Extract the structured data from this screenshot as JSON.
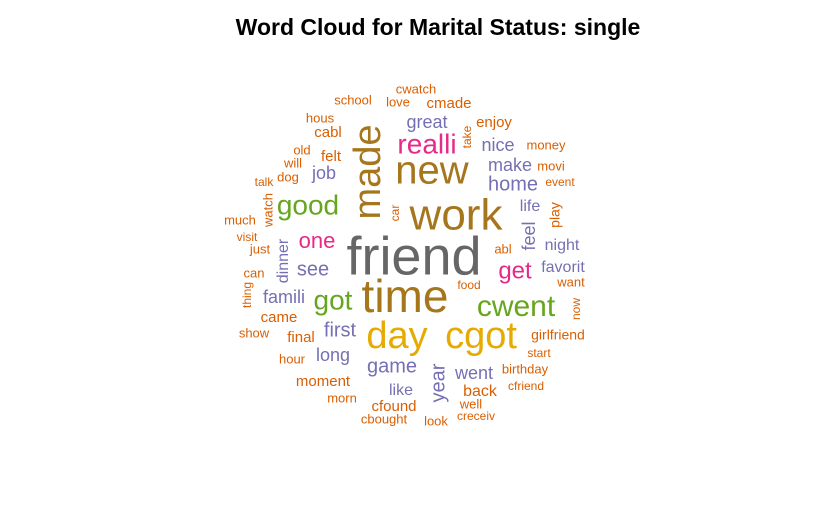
{
  "chart_data": {
    "type": "wordcloud",
    "title": "Word Cloud for Marital Status: single",
    "palette": {
      "orange": "#D95F02",
      "purple": "#7570B3",
      "magenta": "#E7298A",
      "green": "#66A61E",
      "gold": "#E6AB02",
      "brown": "#A6761D",
      "gray": "#666666"
    },
    "words": [
      {
        "text": "friend",
        "color": "gray",
        "rotate": 0
      },
      {
        "text": "made",
        "color": "brown",
        "rotate": -90
      },
      {
        "text": "work",
        "color": "brown",
        "rotate": 0
      },
      {
        "text": "new",
        "color": "brown",
        "rotate": 0
      },
      {
        "text": "time",
        "color": "brown",
        "rotate": 0
      },
      {
        "text": "day",
        "color": "gold",
        "rotate": 0
      },
      {
        "text": "cgot",
        "color": "gold",
        "rotate": 0
      },
      {
        "text": "cwent",
        "color": "green",
        "rotate": 0
      },
      {
        "text": "realli",
        "color": "magenta",
        "rotate": 0
      },
      {
        "text": "good",
        "color": "green",
        "rotate": 0
      },
      {
        "text": "got",
        "color": "green",
        "rotate": 0
      },
      {
        "text": "get",
        "color": "magenta",
        "rotate": 0
      },
      {
        "text": "one",
        "color": "magenta",
        "rotate": 0
      },
      {
        "text": "see",
        "color": "purple",
        "rotate": 0
      },
      {
        "text": "game",
        "color": "purple",
        "rotate": 0
      },
      {
        "text": "home",
        "color": "purple",
        "rotate": 0
      },
      {
        "text": "famili",
        "color": "purple",
        "rotate": 0
      },
      {
        "text": "first",
        "color": "purple",
        "rotate": 0
      },
      {
        "text": "job",
        "color": "purple",
        "rotate": 0
      },
      {
        "text": "nice",
        "color": "purple",
        "rotate": 0
      },
      {
        "text": "great",
        "color": "purple",
        "rotate": 0
      },
      {
        "text": "make",
        "color": "purple",
        "rotate": 0
      },
      {
        "text": "long",
        "color": "purple",
        "rotate": 0
      },
      {
        "text": "went",
        "color": "purple",
        "rotate": 0
      },
      {
        "text": "year",
        "color": "purple",
        "rotate": -90
      },
      {
        "text": "feel",
        "color": "purple",
        "rotate": -90
      },
      {
        "text": "dinner",
        "color": "purple",
        "rotate": -90
      },
      {
        "text": "favorit",
        "color": "purple",
        "rotate": 0
      },
      {
        "text": "life",
        "color": "purple",
        "rotate": 0
      },
      {
        "text": "night",
        "color": "purple",
        "rotate": 0
      },
      {
        "text": "like",
        "color": "purple",
        "rotate": 0
      },
      {
        "text": "play",
        "color": "orange",
        "rotate": -90
      },
      {
        "text": "back",
        "color": "orange",
        "rotate": 0
      },
      {
        "text": "moment",
        "color": "orange",
        "rotate": 0
      },
      {
        "text": "cfound",
        "color": "orange",
        "rotate": 0
      },
      {
        "text": "cmade",
        "color": "orange",
        "rotate": 0
      },
      {
        "text": "enjoy",
        "color": "orange",
        "rotate": 0
      },
      {
        "text": "felt",
        "color": "orange",
        "rotate": 0
      },
      {
        "text": "cabl",
        "color": "orange",
        "rotate": 0
      },
      {
        "text": "came",
        "color": "orange",
        "rotate": 0
      },
      {
        "text": "final",
        "color": "orange",
        "rotate": 0
      },
      {
        "text": "girlfriend",
        "color": "orange",
        "rotate": 0
      },
      {
        "text": "birthday",
        "color": "orange",
        "rotate": 0
      },
      {
        "text": "abl",
        "color": "orange",
        "rotate": 0
      },
      {
        "text": "money",
        "color": "orange",
        "rotate": 0
      },
      {
        "text": "dog",
        "color": "orange",
        "rotate": 0
      },
      {
        "text": "watch",
        "color": "orange",
        "rotate": -90
      },
      {
        "text": "cwatch",
        "color": "orange",
        "rotate": 0
      },
      {
        "text": "love",
        "color": "orange",
        "rotate": 0
      },
      {
        "text": "school",
        "color": "orange",
        "rotate": 0
      },
      {
        "text": "hous",
        "color": "orange",
        "rotate": 0
      },
      {
        "text": "old",
        "color": "orange",
        "rotate": 0
      },
      {
        "text": "will",
        "color": "orange",
        "rotate": 0
      },
      {
        "text": "talk",
        "color": "orange",
        "rotate": 0
      },
      {
        "text": "take",
        "color": "orange",
        "rotate": -90
      },
      {
        "text": "movi",
        "color": "orange",
        "rotate": 0
      },
      {
        "text": "event",
        "color": "orange",
        "rotate": 0
      },
      {
        "text": "much",
        "color": "orange",
        "rotate": 0
      },
      {
        "text": "visit",
        "color": "orange",
        "rotate": 0
      },
      {
        "text": "just",
        "color": "orange",
        "rotate": 0
      },
      {
        "text": "can",
        "color": "orange",
        "rotate": 0
      },
      {
        "text": "thing",
        "color": "orange",
        "rotate": -90
      },
      {
        "text": "show",
        "color": "orange",
        "rotate": 0
      },
      {
        "text": "hour",
        "color": "orange",
        "rotate": 0
      },
      {
        "text": "morn",
        "color": "orange",
        "rotate": 0
      },
      {
        "text": "cbought",
        "color": "orange",
        "rotate": 0
      },
      {
        "text": "look",
        "color": "orange",
        "rotate": 0
      },
      {
        "text": "creceiv",
        "color": "orange",
        "rotate": 0
      },
      {
        "text": "well",
        "color": "orange",
        "rotate": 0
      },
      {
        "text": "cfriend",
        "color": "orange",
        "rotate": 0
      },
      {
        "text": "start",
        "color": "orange",
        "rotate": 0
      },
      {
        "text": "now",
        "color": "orange",
        "rotate": -90
      },
      {
        "text": "want",
        "color": "orange",
        "rotate": 0
      },
      {
        "text": "food",
        "color": "orange",
        "rotate": 0
      },
      {
        "text": "car",
        "color": "orange",
        "rotate": -90
      }
    ]
  }
}
